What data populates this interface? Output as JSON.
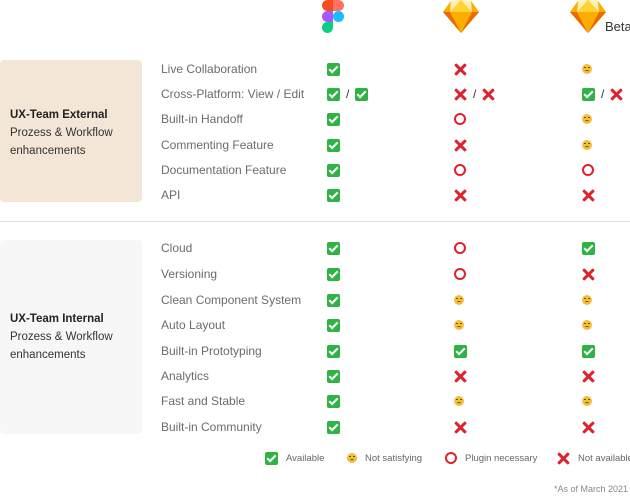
{
  "header": {
    "tools": [
      {
        "name": "figma-logo-icon"
      },
      {
        "name": "sketch-logo-icon"
      },
      {
        "name": "sketch-beta-logo-icon",
        "badge": "Beta"
      }
    ]
  },
  "groups": [
    {
      "title": "UX-Team External",
      "subtitle_line1": "Prozess & Workflow",
      "subtitle_line2": "enhancements"
    },
    {
      "title": "UX-Team Internal",
      "subtitle_line1": "Prozess & Workflow",
      "subtitle_line2": "enhancements"
    }
  ],
  "rows": [
    {
      "label": "Live Collaboration",
      "figma": [
        "check"
      ],
      "sketch": [
        "cross"
      ],
      "beta": [
        "sad"
      ]
    },
    {
      "label": "Cross-Platform: View / Edit",
      "figma": [
        "check",
        "check"
      ],
      "sketch": [
        "cross",
        "cross"
      ],
      "beta": [
        "check",
        "cross"
      ],
      "separator": "/"
    },
    {
      "label": "Built-in Handoff",
      "figma": [
        "check"
      ],
      "sketch": [
        "circle"
      ],
      "beta": [
        "sad"
      ]
    },
    {
      "label": "Commenting Feature",
      "figma": [
        "check"
      ],
      "sketch": [
        "cross"
      ],
      "beta": [
        "sad"
      ]
    },
    {
      "label": "Documentation Feature",
      "figma": [
        "check"
      ],
      "sketch": [
        "circle"
      ],
      "beta": [
        "circle"
      ]
    },
    {
      "label": "API",
      "figma": [
        "check"
      ],
      "sketch": [
        "cross"
      ],
      "beta": [
        "cross"
      ]
    },
    {
      "label": "Cloud",
      "figma": [
        "check"
      ],
      "sketch": [
        "circle"
      ],
      "beta": [
        "check"
      ]
    },
    {
      "label": "Versioning",
      "figma": [
        "check"
      ],
      "sketch": [
        "circle"
      ],
      "beta": [
        "cross"
      ]
    },
    {
      "label": "Clean Component System",
      "figma": [
        "check"
      ],
      "sketch": [
        "sad"
      ],
      "beta": [
        "sad"
      ]
    },
    {
      "label": "Auto Layout",
      "figma": [
        "check"
      ],
      "sketch": [
        "sad"
      ],
      "beta": [
        "sad"
      ]
    },
    {
      "label": "Built-in Prototyping",
      "figma": [
        "check"
      ],
      "sketch": [
        "check"
      ],
      "beta": [
        "check"
      ]
    },
    {
      "label": "Analytics",
      "figma": [
        "check"
      ],
      "sketch": [
        "cross"
      ],
      "beta": [
        "cross"
      ]
    },
    {
      "label": "Fast and Stable",
      "figma": [
        "check"
      ],
      "sketch": [
        "sad"
      ],
      "beta": [
        "sad"
      ]
    },
    {
      "label": "Built-in Community",
      "figma": [
        "check"
      ],
      "sketch": [
        "cross"
      ],
      "beta": [
        "cross"
      ]
    }
  ],
  "legend": {
    "available": "Available",
    "not_satisfying": "Not satisfying",
    "plugin_necessary": "Plugin necessary",
    "not_available": "Not available"
  },
  "footnote": "*As of March 2021",
  "colors": {
    "check": "#2fb344",
    "cross": "#e0202b",
    "sad": "#f3be3e",
    "external_bg": "#f4e6d6",
    "internal_bg": "#f7f7f7"
  }
}
